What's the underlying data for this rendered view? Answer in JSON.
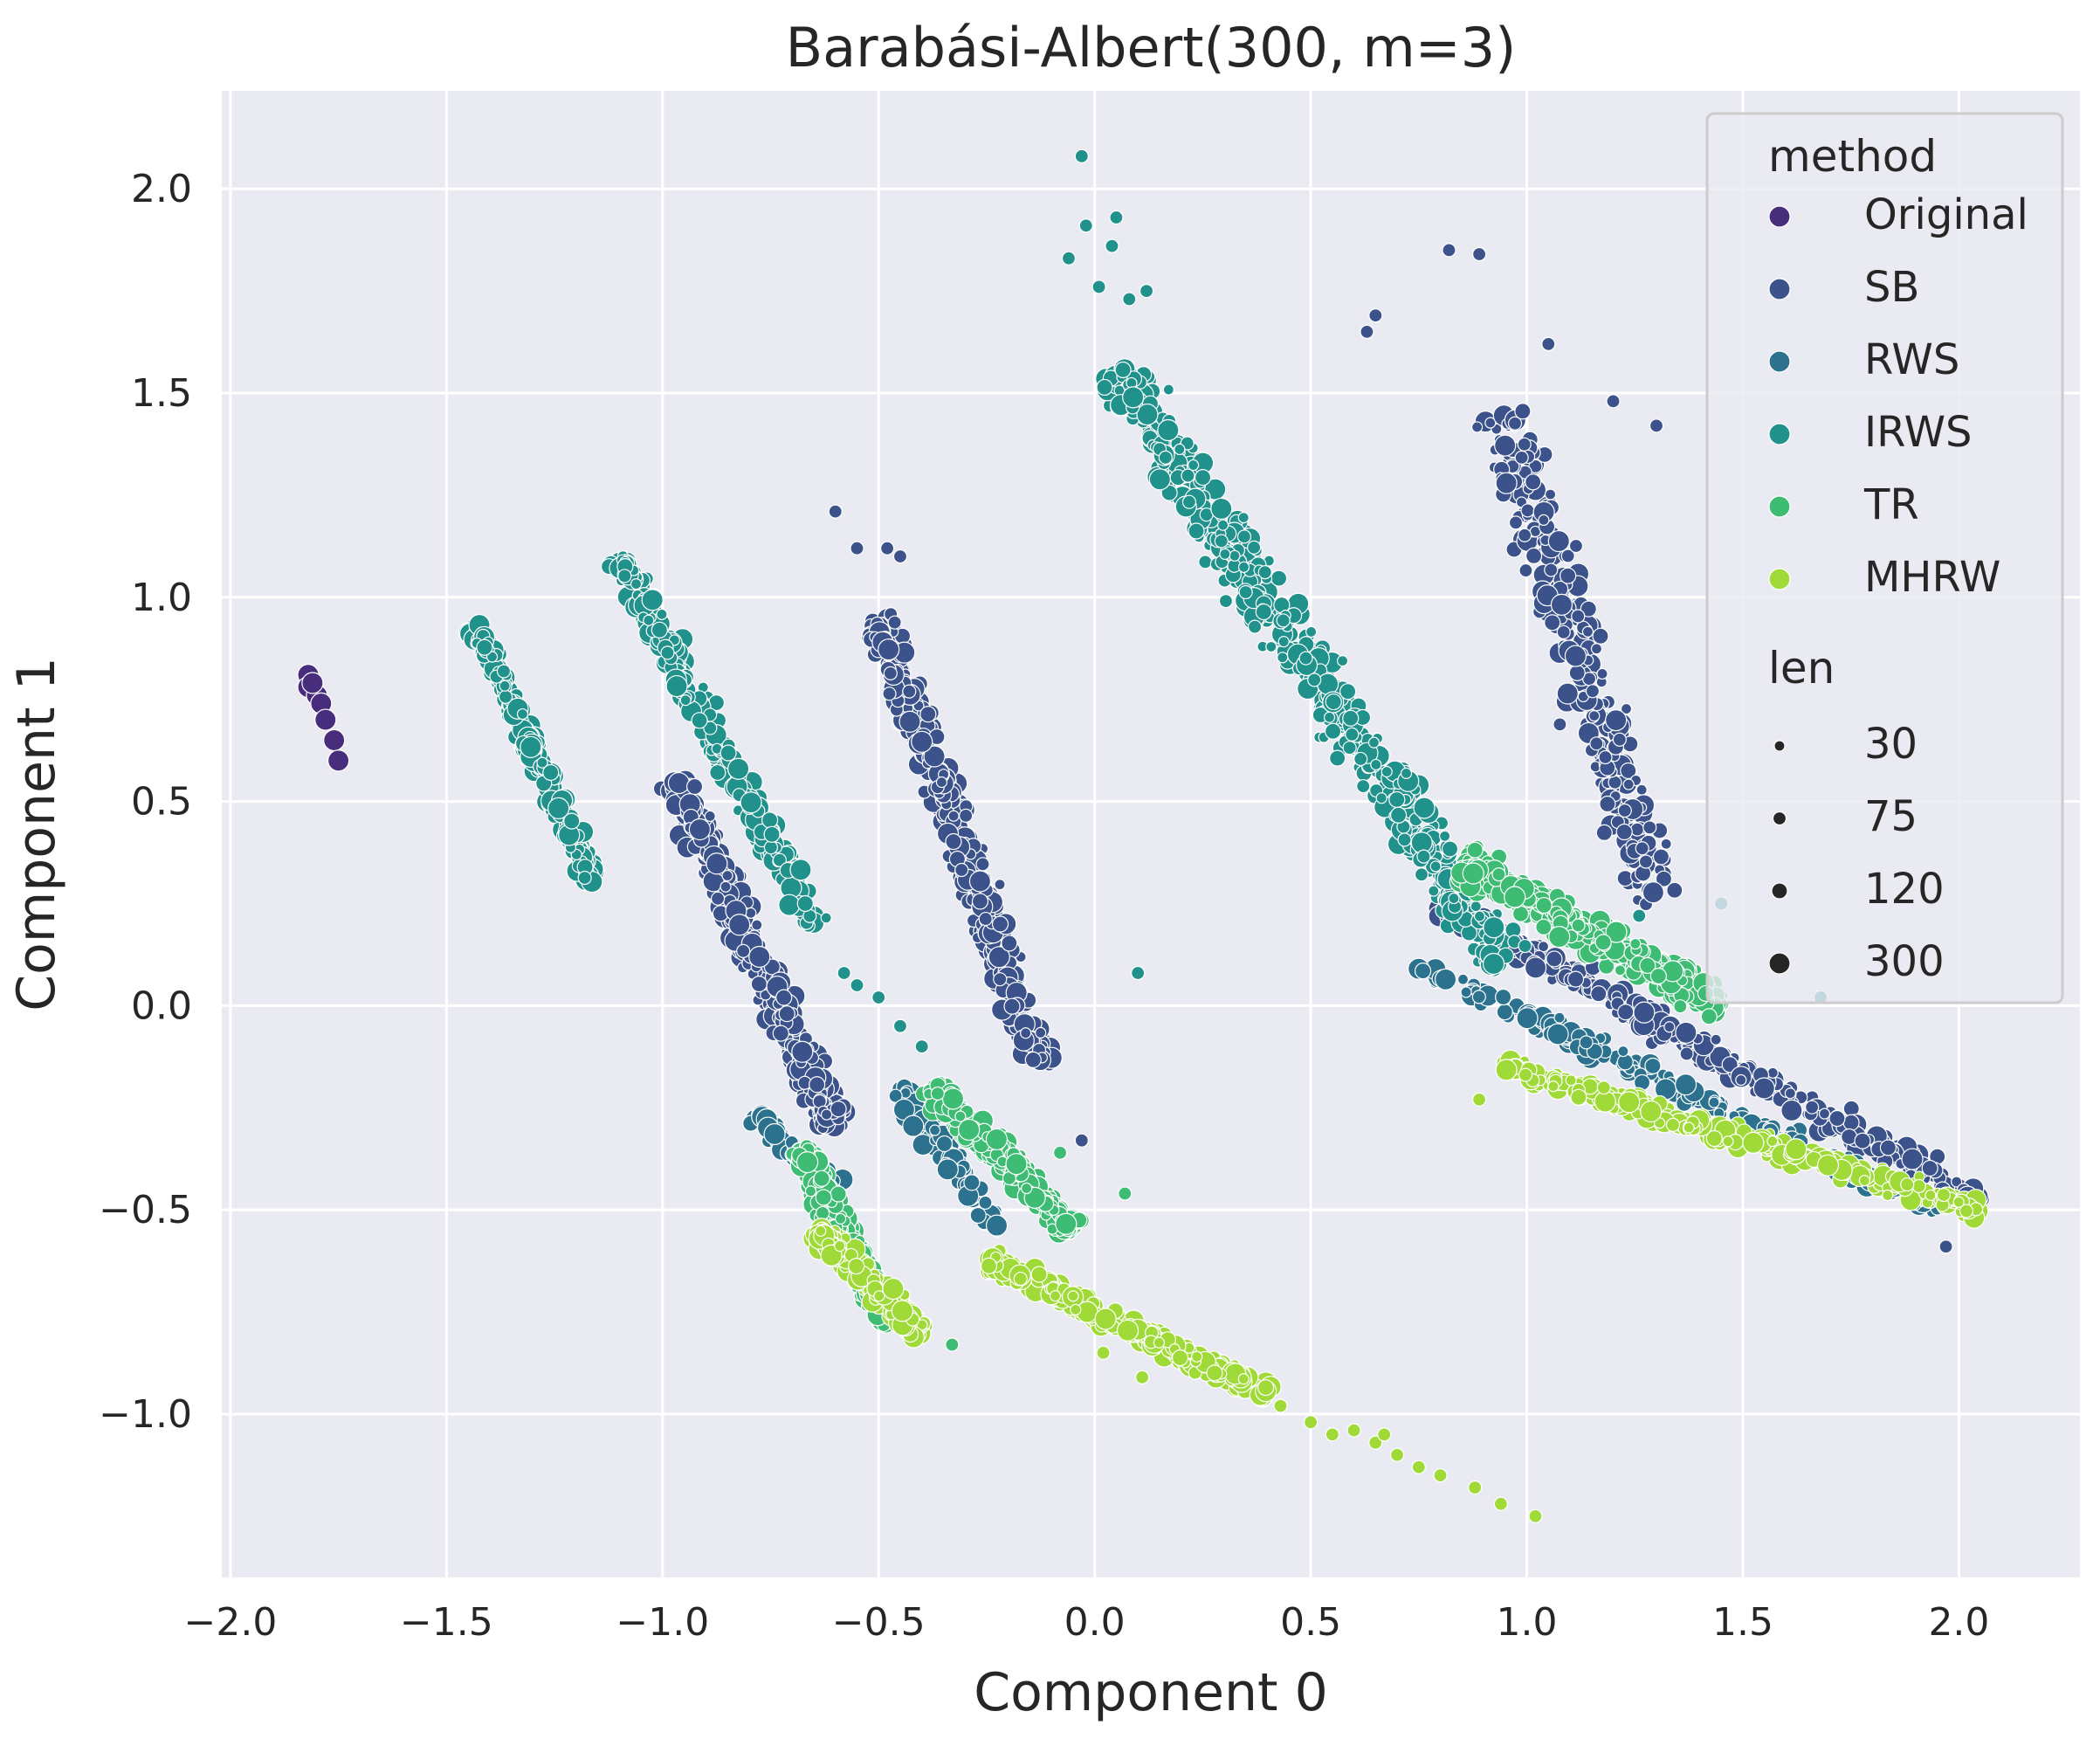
{
  "chart_data": {
    "type": "scatter",
    "title": "Barabási-Albert(300, m=3)",
    "xlabel": "Component 0",
    "ylabel": "Component 1",
    "xlim": [
      -2.02,
      2.28
    ],
    "ylim": [
      -1.4,
      2.24
    ],
    "xticks": [
      -2.0,
      -1.5,
      -1.0,
      -0.5,
      0.0,
      0.5,
      1.0,
      1.5,
      2.0
    ],
    "xtick_labels": [
      "−2.0",
      "−1.5",
      "−1.0",
      "−0.5",
      "0.0",
      "0.5",
      "1.0",
      "1.5",
      "2.0"
    ],
    "yticks": [
      -1.0,
      -0.5,
      0.0,
      0.5,
      1.0,
      1.5,
      2.0
    ],
    "ytick_labels": [
      "−1.0",
      "−0.5",
      "0.0",
      "0.5",
      "1.0",
      "1.5",
      "2.0"
    ],
    "grid": true,
    "background": "#eaeaf2",
    "grid_color": "#ffffff",
    "legend": {
      "position": "top-right",
      "hue_title": "method",
      "size_title": "len",
      "hue_entries": [
        {
          "label": "Original",
          "color": "#472d7b"
        },
        {
          "label": "SB",
          "color": "#3b528b"
        },
        {
          "label": "RWS",
          "color": "#2c728e"
        },
        {
          "label": "IRWS",
          "color": "#21918c"
        },
        {
          "label": "TR",
          "color": "#3fbc73"
        },
        {
          "label": "MHRW",
          "color": "#a0da39"
        }
      ],
      "size_entries": [
        {
          "label": "30",
          "len": 30
        },
        {
          "label": "75",
          "len": 75
        },
        {
          "label": "120",
          "len": 120
        },
        {
          "label": "300",
          "len": 300
        }
      ]
    },
    "series": [
      {
        "name": "Original",
        "color": "#472d7b",
        "len": 300,
        "points": [
          [
            -1.82,
            0.81
          ],
          [
            -1.82,
            0.78
          ],
          [
            -1.8,
            0.76
          ],
          [
            -1.79,
            0.74
          ],
          [
            -1.78,
            0.7
          ],
          [
            -1.76,
            0.65
          ],
          [
            -1.75,
            0.6
          ],
          [
            -1.81,
            0.79
          ]
        ]
      },
      {
        "name": "SB",
        "color": "#3b528b",
        "clusters": [
          {
            "from": [
              -0.97,
              0.55
            ],
            "to": [
              -0.6,
              -0.3
            ],
            "width": 0.07,
            "n": 460
          },
          {
            "from": [
              -0.5,
              0.95
            ],
            "to": [
              -0.12,
              -0.15
            ],
            "width": 0.07,
            "n": 460
          },
          {
            "from": [
              0.95,
              1.45
            ],
            "to": [
              1.3,
              0.25
            ],
            "width": 0.12,
            "n": 300
          },
          {
            "from": [
              0.8,
              0.25
            ],
            "to": [
              2.05,
              -0.48
            ],
            "width": 0.06,
            "n": 320
          }
        ],
        "points": [
          [
            -0.6,
            1.21
          ],
          [
            -0.55,
            1.12
          ],
          [
            -0.48,
            1.12
          ],
          [
            -0.45,
            1.1
          ],
          [
            0.82,
            1.85
          ],
          [
            0.89,
            1.84
          ],
          [
            0.65,
            1.69
          ],
          [
            0.63,
            1.65
          ],
          [
            1.05,
            1.62
          ],
          [
            1.2,
            1.48
          ],
          [
            1.3,
            1.42
          ],
          [
            1.97,
            -0.59
          ],
          [
            -0.03,
            -0.33
          ]
        ]
      },
      {
        "name": "RWS",
        "color": "#2c728e",
        "clusters": [
          {
            "from": [
              -0.78,
              -0.27
            ],
            "to": [
              -0.6,
              -0.45
            ],
            "width": 0.05,
            "n": 80
          },
          {
            "from": [
              -0.45,
              -0.2
            ],
            "to": [
              -0.22,
              -0.55
            ],
            "width": 0.05,
            "n": 100
          },
          {
            "from": [
              0.75,
              0.1
            ],
            "to": [
              1.95,
              -0.5
            ],
            "width": 0.05,
            "n": 200
          }
        ],
        "points": []
      },
      {
        "name": "IRWS",
        "color": "#21918c",
        "clusters": [
          {
            "from": [
              -1.43,
              0.93
            ],
            "to": [
              -1.16,
              0.3
            ],
            "width": 0.04,
            "n": 320
          },
          {
            "from": [
              -1.1,
              1.1
            ],
            "to": [
              -0.65,
              0.2
            ],
            "width": 0.06,
            "n": 320
          },
          {
            "from": [
              0.05,
              1.55
            ],
            "to": [
              0.95,
              0.1
            ],
            "width": 0.11,
            "n": 640
          }
        ],
        "points": [
          [
            -0.03,
            2.08
          ],
          [
            -0.02,
            1.91
          ],
          [
            0.05,
            1.93
          ],
          [
            -0.06,
            1.83
          ],
          [
            0.04,
            1.86
          ],
          [
            0.01,
            1.76
          ],
          [
            0.08,
            1.73
          ],
          [
            0.12,
            1.75
          ],
          [
            -0.55,
            0.05
          ],
          [
            -0.5,
            0.02
          ],
          [
            -0.45,
            -0.05
          ],
          [
            -0.4,
            -0.1
          ],
          [
            -0.58,
            0.08
          ],
          [
            1.26,
            0.22
          ],
          [
            1.45,
            0.25
          ],
          [
            1.68,
            0.02
          ],
          [
            0.1,
            0.08
          ]
        ]
      },
      {
        "name": "TR",
        "color": "#3fbc73",
        "clusters": [
          {
            "from": [
              -0.68,
              -0.35
            ],
            "to": [
              -0.48,
              -0.78
            ],
            "width": 0.06,
            "n": 320
          },
          {
            "from": [
              -0.38,
              -0.2
            ],
            "to": [
              -0.05,
              -0.55
            ],
            "width": 0.06,
            "n": 320
          },
          {
            "from": [
              0.85,
              0.35
            ],
            "to": [
              1.45,
              0.0
            ],
            "width": 0.08,
            "n": 420
          }
        ],
        "points": [
          [
            -0.33,
            -0.83
          ],
          [
            0.07,
            -0.46
          ],
          [
            -0.08,
            -0.36
          ]
        ]
      },
      {
        "name": "MHRW",
        "color": "#a0da39",
        "clusters": [
          {
            "from": [
              -0.64,
              -0.55
            ],
            "to": [
              -0.4,
              -0.8
            ],
            "width": 0.05,
            "n": 300
          },
          {
            "from": [
              -0.25,
              -0.62
            ],
            "to": [
              0.4,
              -0.95
            ],
            "width": 0.05,
            "n": 320
          },
          {
            "from": [
              0.95,
              -0.15
            ],
            "to": [
              2.05,
              -0.5
            ],
            "width": 0.05,
            "n": 320
          }
        ],
        "points": [
          [
            0.43,
            -0.98
          ],
          [
            0.5,
            -1.02
          ],
          [
            0.55,
            -1.05
          ],
          [
            0.6,
            -1.04
          ],
          [
            0.65,
            -1.07
          ],
          [
            0.67,
            -1.05
          ],
          [
            0.7,
            -1.1
          ],
          [
            0.75,
            -1.13
          ],
          [
            0.8,
            -1.15
          ],
          [
            0.88,
            -1.18
          ],
          [
            0.94,
            -1.22
          ],
          [
            1.02,
            -1.25
          ],
          [
            0.11,
            -0.91
          ],
          [
            0.02,
            -0.85
          ],
          [
            0.89,
            -0.23
          ]
        ]
      }
    ]
  }
}
